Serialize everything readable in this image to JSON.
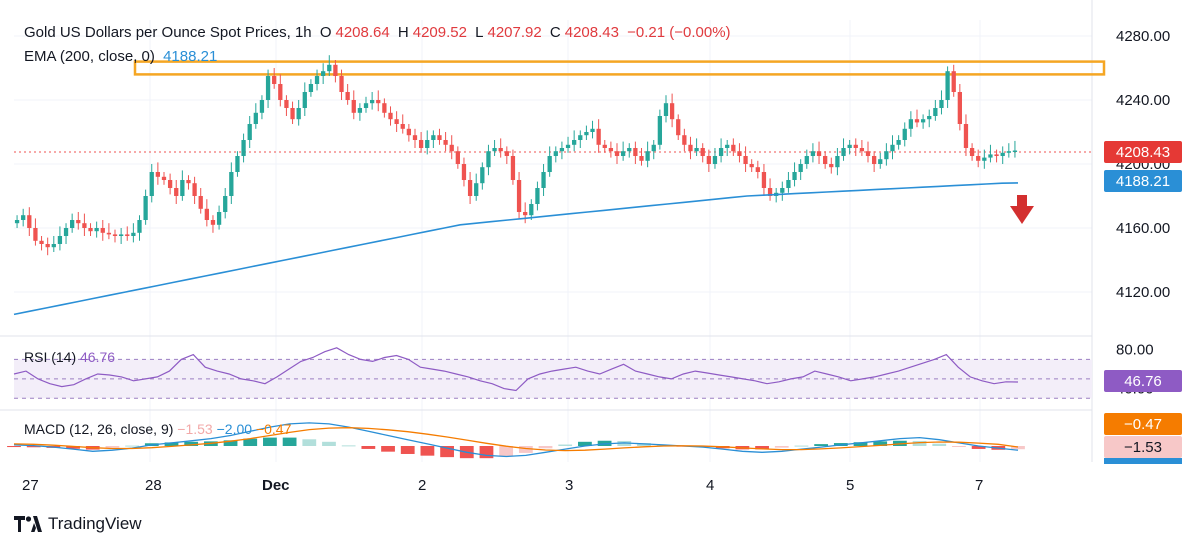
{
  "header": {
    "symbol": "Gold US Dollars per Ounce Spot Prices, 1h",
    "o_label": "O",
    "o_value": "4208.64",
    "h_label": "H",
    "h_value": "4209.52",
    "l_label": "L",
    "l_value": "4207.92",
    "c_label": "C",
    "c_value": "4208.43",
    "change": "−0.21 (−0.00%)",
    "ema_label": "EMA (200, close, 0)",
    "ema_value": "4188.21"
  },
  "price_tags": {
    "last": "4208.43",
    "ema": "4188.21"
  },
  "rsi": {
    "label": "RSI (14)",
    "value": "46.76",
    "tag": "46.76"
  },
  "macd": {
    "label": "MACD (12, 26, close, 9)",
    "hist": "−1.53",
    "macd": "−2.00",
    "signal": "−0.47",
    "tag_signal": "−0.47",
    "tag_hist": "−1.53"
  },
  "brand": {
    "name": "TradingView"
  },
  "colors": {
    "up": "#26a69a",
    "down": "#ef5350",
    "ema": "#2a8fd6",
    "rsi": "#8e5bc4",
    "macd": "#2a8fd6",
    "signal": "#f57c00",
    "resistance": "#f5a623",
    "arrow": "#d32f2f"
  },
  "chart_data": {
    "type": "candlestick",
    "price_axis": {
      "ticks": [
        "4280.00",
        "4240.00",
        "4200.00",
        "4160.00",
        "4120.00"
      ],
      "range": [
        4095,
        4290
      ]
    },
    "rsi_axis": {
      "ticks": [
        "80.00",
        "40.00"
      ],
      "range": [
        20,
        90
      ]
    },
    "time_axis": [
      "27",
      "28",
      "Dec",
      "2",
      "3",
      "4",
      "5",
      "7"
    ],
    "resistance_zone": [
      4256,
      4264
    ],
    "last_price": 4208.43,
    "ema200_last": 4188.21,
    "close_series": [
      4165,
      4168,
      4160,
      4152,
      4150,
      4148,
      4150,
      4155,
      4160,
      4165,
      4163,
      4160,
      4158,
      4160,
      4157,
      4156,
      4155,
      4156,
      4155,
      4157,
      4165,
      4180,
      4195,
      4192,
      4190,
      4185,
      4180,
      4190,
      4188,
      4180,
      4172,
      4165,
      4162,
      4170,
      4180,
      4195,
      4205,
      4215,
      4225,
      4232,
      4240,
      4255,
      4250,
      4240,
      4235,
      4228,
      4235,
      4245,
      4250,
      4255,
      4258,
      4262,
      4255,
      4245,
      4240,
      4232,
      4235,
      4238,
      4240,
      4238,
      4232,
      4228,
      4225,
      4222,
      4218,
      4215,
      4210,
      4215,
      4218,
      4215,
      4212,
      4208,
      4200,
      4190,
      4180,
      4188,
      4198,
      4208,
      4210,
      4208,
      4205,
      4190,
      4170,
      4168,
      4175,
      4185,
      4195,
      4205,
      4208,
      4210,
      4212,
      4215,
      4218,
      4220,
      4222,
      4212,
      4210,
      4208,
      4205,
      4208,
      4210,
      4205,
      4202,
      4208,
      4212,
      4230,
      4238,
      4228,
      4218,
      4212,
      4208,
      4210,
      4205,
      4200,
      4205,
      4210,
      4212,
      4208,
      4205,
      4200,
      4198,
      4195,
      4185,
      4180,
      4182,
      4185,
      4190,
      4195,
      4200,
      4205,
      4208,
      4205,
      4200,
      4198,
      4205,
      4210,
      4212,
      4210,
      4208,
      4205,
      4200,
      4203,
      4208,
      4212,
      4215,
      4222,
      4228,
      4226,
      4228,
      4230,
      4235,
      4240,
      4258,
      4245,
      4225,
      4210,
      4205,
      4202,
      4204,
      4206,
      4205,
      4207,
      4208,
      4208.43
    ],
    "ema_series": [
      4106,
      4108,
      4110,
      4112,
      4114,
      4116,
      4118,
      4120,
      4122,
      4124,
      4126,
      4128,
      4130,
      4132,
      4134,
      4136,
      4138,
      4140,
      4142,
      4144,
      4146,
      4148,
      4150,
      4152,
      4154,
      4156,
      4158,
      4160,
      4162,
      4163,
      4164,
      4165,
      4166,
      4167,
      4168,
      4169,
      4170,
      4171,
      4172,
      4173,
      4174,
      4175,
      4176,
      4177,
      4178,
      4179,
      4180,
      4180.5,
      4181,
      4181.5,
      4182,
      4182.5,
      4183,
      4183.5,
      4184,
      4184.5,
      4185,
      4185.5,
      4186,
      4186.5,
      4187,
      4187.5,
      4188,
      4188.21
    ],
    "rsi_series": [
      55,
      58,
      50,
      45,
      42,
      44,
      50,
      55,
      54,
      52,
      48,
      50,
      52,
      58,
      70,
      75,
      62,
      58,
      55,
      50,
      48,
      45,
      52,
      60,
      68,
      72,
      78,
      82,
      75,
      70,
      68,
      72,
      74,
      70,
      62,
      60,
      58,
      55,
      52,
      48,
      45,
      40,
      38,
      50,
      55,
      58,
      60,
      62,
      58,
      55,
      60,
      65,
      58,
      55,
      52,
      50,
      55,
      58,
      56,
      54,
      52,
      50,
      48,
      45,
      47,
      50,
      52,
      58,
      55,
      52,
      48,
      50,
      52,
      55,
      58,
      62,
      66,
      70,
      75,
      62,
      52,
      48,
      45,
      47,
      46.76
    ],
    "macd_series": [
      0.5,
      0.2,
      -0.5,
      -1.5,
      -2.5,
      -2.0,
      -1.0,
      0.5,
      1.5,
      2.5,
      3.5,
      5.0,
      7.0,
      9.0,
      10.5,
      11.0,
      10.5,
      9.0,
      7.0,
      5.0,
      3.0,
      1.0,
      -1.0,
      -3.0,
      -4.5,
      -5.0,
      -4.5,
      -3.0,
      -1.5,
      0.0,
      1.0,
      1.5,
      1.0,
      0.5,
      0.0,
      -0.5,
      -1.5,
      -2.5,
      -3.0,
      -2.5,
      -1.5,
      -0.5,
      0.5,
      1.5,
      2.5,
      3.5,
      4.0,
      3.0,
      1.5,
      0.0,
      -1.0,
      -2.0
    ],
    "signal_series": [
      1.0,
      0.8,
      0.4,
      -0.2,
      -0.8,
      -1.2,
      -1.2,
      -0.8,
      -0.2,
      0.5,
      1.3,
      2.3,
      3.5,
      5.0,
      6.5,
      7.8,
      8.5,
      8.7,
      8.4,
      7.7,
      6.8,
      5.6,
      4.3,
      2.8,
      1.3,
      -0.1,
      -1.2,
      -1.9,
      -2.2,
      -2.0,
      -1.5,
      -0.9,
      -0.4,
      0.0,
      0.1,
      0.0,
      -0.4,
      -0.9,
      -1.4,
      -1.7,
      -1.7,
      -1.4,
      -0.9,
      -0.3,
      0.3,
      1.0,
      1.6,
      1.9,
      1.8,
      1.4,
      0.8,
      -0.47
    ]
  }
}
